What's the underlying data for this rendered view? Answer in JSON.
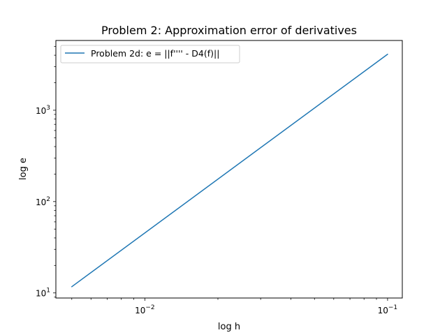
{
  "chart_data": {
    "type": "line",
    "title": "Problem 2: Approximation error of derivatives",
    "xlabel": "log h",
    "ylabel": "log e",
    "xscale": "log",
    "yscale": "log",
    "xlim": [
      0.0043,
      0.115
    ],
    "ylim": [
      8.8,
      5800
    ],
    "grid": false,
    "legend_position": "top-left",
    "series": [
      {
        "name": "Problem 2d: e = ||f'''' - D4(f)||",
        "color": "#1f77b4",
        "x": [
          0.005,
          0.1
        ],
        "y": [
          11.7,
          4100
        ]
      }
    ],
    "x_major_ticks": [
      {
        "value": 0.01,
        "base": "10",
        "exp": "−2"
      },
      {
        "value": 0.1,
        "base": "10",
        "exp": "−1"
      }
    ],
    "y_major_ticks": [
      {
        "value": 10,
        "base": "10",
        "exp": "1"
      },
      {
        "value": 100,
        "base": "10",
        "exp": "2"
      },
      {
        "value": 1000,
        "base": "10",
        "exp": "3"
      }
    ]
  }
}
